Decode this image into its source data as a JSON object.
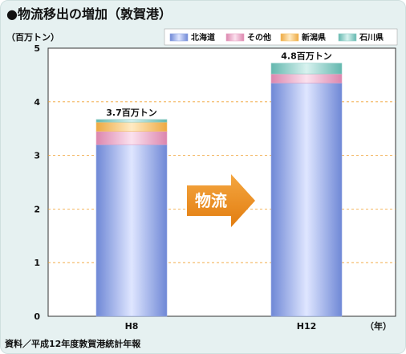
{
  "title": "●物流移出の増加（敦賀港）",
  "source": "資料／平成12年度敦賀港統計年報",
  "arrow_label": "物流",
  "chart_data": {
    "type": "bar",
    "stacked": true,
    "title": "●物流移出の増加（敦賀港）",
    "ylabel": "（百万トン）",
    "xlabel": "（年）",
    "ylim": [
      0,
      5
    ],
    "yticks": [
      0,
      1,
      2,
      3,
      4,
      5
    ],
    "grid": true,
    "legend_position": "top-right",
    "categories": [
      "H8",
      "H12"
    ],
    "totals_labels": [
      "3.7百万トン",
      "4.8百万トン"
    ],
    "series": [
      {
        "name": "北海道",
        "values": [
          3.2,
          4.35
        ],
        "color": "#8fa6e2"
      },
      {
        "name": "その他",
        "values": [
          0.25,
          0.17
        ],
        "color": "#e6a3c4"
      },
      {
        "name": "新潟県",
        "values": [
          0.17,
          0.0
        ],
        "color": "#f4c36a"
      },
      {
        "name": "石川県",
        "values": [
          0.05,
          0.2
        ],
        "color": "#93cfc8"
      }
    ]
  }
}
